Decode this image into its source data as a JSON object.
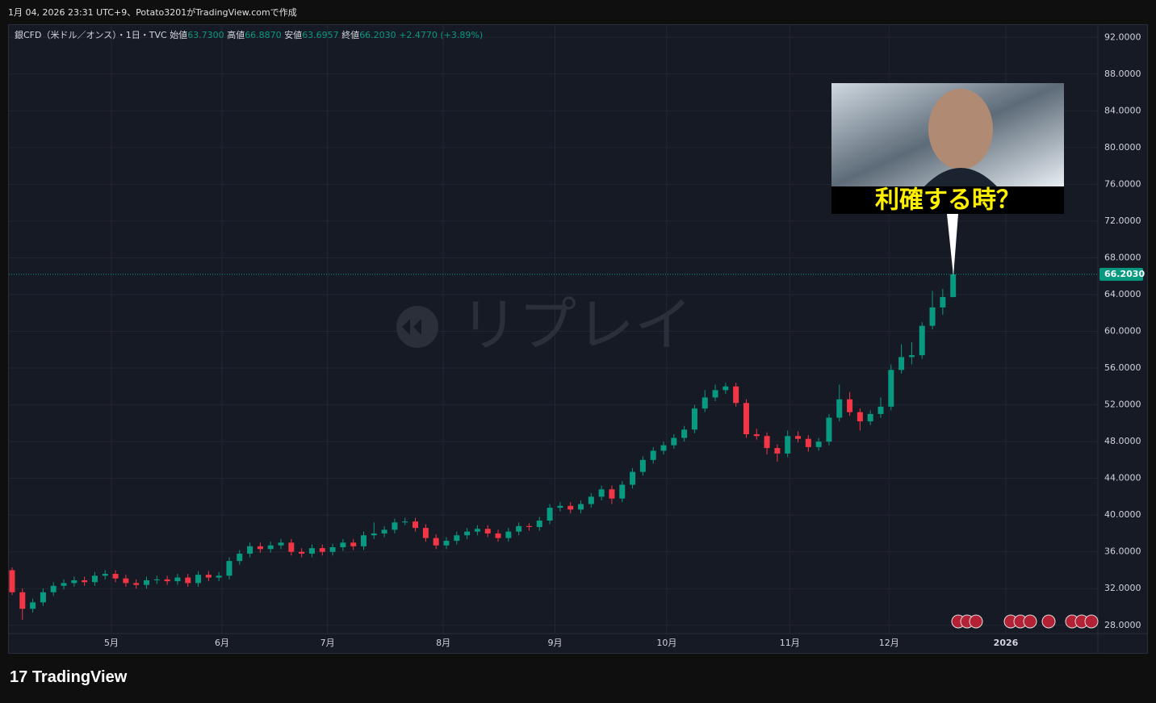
{
  "header": {
    "created": "1月 04, 2026 23:31 UTC+9、Potato3201がTradingView.comで作成",
    "symbol": "銀CFD（米ドル／オンス）・1日・TVC",
    "open_label": "始値",
    "open": "63.7300",
    "high_label": "高値",
    "high": "66.8870",
    "low_label": "安値",
    "low": "63.6957",
    "close_label": "終値",
    "close": "66.2030",
    "change": "+2.4770 (+3.89%)"
  },
  "overlay": {
    "caption": "利確する時？",
    "watermark": "リプレイ"
  },
  "footer": {
    "logo": "TradingView"
  },
  "chart_data": {
    "type": "candlestick",
    "up_color": "#089981",
    "down_color": "#f23645",
    "grid": true,
    "ylim": [
      27.1,
      93.34
    ],
    "xlim": [
      -0.31,
      105
    ],
    "yticks": [
      {
        "value": 28,
        "label": "28.0000"
      },
      {
        "value": 32,
        "label": "32.0000"
      },
      {
        "value": 36,
        "label": "36.0000"
      },
      {
        "value": 40,
        "label": "40.0000"
      },
      {
        "value": 44,
        "label": "44.0000"
      },
      {
        "value": 48,
        "label": "48.0000"
      },
      {
        "value": 52,
        "label": "52.0000"
      },
      {
        "value": 56,
        "label": "56.0000"
      },
      {
        "value": 60,
        "label": "60.0000"
      },
      {
        "value": 64,
        "label": "64.0000"
      },
      {
        "value": 68,
        "label": "68.0000"
      },
      {
        "value": 72,
        "label": "72.0000"
      },
      {
        "value": 76,
        "label": "76.0000"
      },
      {
        "value": 80,
        "label": "80.0000"
      },
      {
        "value": 84,
        "label": "84.0000"
      },
      {
        "value": 88,
        "label": "88.0000"
      },
      {
        "value": 92,
        "label": "92.0000"
      }
    ],
    "xticks": [
      {
        "value": 9.6,
        "label": "5月"
      },
      {
        "value": 20.3,
        "label": "6月"
      },
      {
        "value": 30.5,
        "label": "7月"
      },
      {
        "value": 41.7,
        "label": "8月"
      },
      {
        "value": 52.5,
        "label": "9月"
      },
      {
        "value": 63.3,
        "label": "10月"
      },
      {
        "value": 75.2,
        "label": "11月"
      },
      {
        "value": 84.8,
        "label": "12月"
      },
      {
        "value": 96.1,
        "label": "2026"
      }
    ],
    "last_price": {
      "value": 66.203,
      "label": "66.2030"
    },
    "ohlc": [
      [
        34.0,
        34.3,
        31.3,
        31.6
      ],
      [
        31.6,
        32.0,
        28.6,
        29.8
      ],
      [
        29.8,
        30.9,
        29.4,
        30.5
      ],
      [
        30.5,
        32.0,
        30.1,
        31.6
      ],
      [
        31.6,
        32.7,
        31.2,
        32.3
      ],
      [
        32.3,
        33.0,
        31.9,
        32.6
      ],
      [
        32.6,
        33.3,
        32.2,
        32.9
      ],
      [
        32.9,
        33.3,
        32.3,
        32.7
      ],
      [
        32.7,
        33.8,
        32.3,
        33.4
      ],
      [
        33.4,
        34.0,
        33.0,
        33.6
      ],
      [
        33.6,
        34.0,
        32.7,
        33.1
      ],
      [
        33.1,
        33.5,
        32.2,
        32.6
      ],
      [
        32.6,
        33.0,
        32.0,
        32.4
      ],
      [
        32.4,
        33.3,
        32.0,
        32.9
      ],
      [
        32.9,
        33.4,
        32.5,
        33.0
      ],
      [
        33.0,
        33.4,
        32.4,
        32.8
      ],
      [
        32.8,
        33.6,
        32.4,
        33.2
      ],
      [
        33.2,
        33.6,
        32.2,
        32.6
      ],
      [
        32.6,
        33.9,
        32.2,
        33.5
      ],
      [
        33.5,
        33.9,
        32.8,
        33.2
      ],
      [
        33.2,
        33.8,
        32.8,
        33.4
      ],
      [
        33.4,
        35.4,
        33.0,
        35.0
      ],
      [
        35.0,
        36.2,
        34.6,
        35.8
      ],
      [
        35.8,
        37.0,
        35.4,
        36.6
      ],
      [
        36.6,
        37.0,
        35.9,
        36.3
      ],
      [
        36.3,
        37.1,
        35.9,
        36.7
      ],
      [
        36.7,
        37.4,
        36.3,
        37.0
      ],
      [
        37.0,
        37.4,
        35.6,
        36.0
      ],
      [
        36.0,
        36.4,
        35.4,
        35.8
      ],
      [
        35.8,
        36.8,
        35.4,
        36.4
      ],
      [
        36.4,
        36.8,
        35.6,
        36.0
      ],
      [
        36.0,
        36.9,
        35.6,
        36.5
      ],
      [
        36.5,
        37.4,
        36.1,
        37.0
      ],
      [
        37.0,
        37.4,
        36.2,
        36.6
      ],
      [
        36.6,
        38.2,
        36.2,
        37.8
      ],
      [
        37.8,
        39.2,
        37.4,
        38.0
      ],
      [
        38.0,
        38.8,
        37.6,
        38.4
      ],
      [
        38.4,
        39.6,
        38.0,
        39.2
      ],
      [
        39.2,
        39.7,
        38.9,
        39.3
      ],
      [
        39.3,
        39.7,
        38.2,
        38.6
      ],
      [
        38.6,
        39.0,
        37.1,
        37.5
      ],
      [
        37.5,
        37.9,
        36.3,
        36.7
      ],
      [
        36.7,
        37.6,
        36.3,
        37.2
      ],
      [
        37.2,
        38.2,
        36.8,
        37.8
      ],
      [
        37.8,
        38.6,
        37.4,
        38.2
      ],
      [
        38.2,
        38.9,
        37.8,
        38.5
      ],
      [
        38.5,
        38.9,
        37.6,
        38.0
      ],
      [
        38.0,
        38.4,
        37.1,
        37.5
      ],
      [
        37.5,
        38.6,
        37.1,
        38.2
      ],
      [
        38.2,
        39.2,
        37.8,
        38.8
      ],
      [
        38.8,
        39.1,
        38.3,
        38.7
      ],
      [
        38.7,
        39.8,
        38.3,
        39.4
      ],
      [
        39.4,
        41.2,
        39.0,
        40.8
      ],
      [
        40.8,
        41.4,
        40.4,
        41.0
      ],
      [
        41.0,
        41.4,
        40.2,
        40.6
      ],
      [
        40.6,
        41.6,
        40.2,
        41.2
      ],
      [
        41.2,
        42.4,
        40.8,
        42.0
      ],
      [
        42.0,
        43.2,
        41.6,
        42.8
      ],
      [
        42.8,
        43.2,
        41.2,
        41.8
      ],
      [
        41.8,
        43.7,
        41.4,
        43.3
      ],
      [
        43.3,
        45.1,
        42.9,
        44.7
      ],
      [
        44.7,
        46.4,
        44.3,
        46.0
      ],
      [
        46.0,
        47.4,
        45.6,
        47.0
      ],
      [
        47.0,
        48.0,
        46.6,
        47.6
      ],
      [
        47.6,
        48.8,
        47.2,
        48.4
      ],
      [
        48.4,
        49.7,
        48.0,
        49.3
      ],
      [
        49.3,
        52.0,
        48.9,
        51.6
      ],
      [
        51.6,
        53.6,
        51.2,
        52.8
      ],
      [
        52.8,
        54.2,
        52.4,
        53.6
      ],
      [
        53.6,
        54.4,
        53.2,
        54.0
      ],
      [
        54.0,
        54.4,
        51.8,
        52.2
      ],
      [
        52.2,
        52.6,
        48.4,
        48.8
      ],
      [
        48.8,
        49.4,
        48.2,
        48.6
      ],
      [
        48.6,
        49.0,
        46.6,
        47.3
      ],
      [
        47.3,
        47.7,
        45.8,
        46.7
      ],
      [
        46.7,
        49.2,
        46.3,
        48.6
      ],
      [
        48.6,
        49.1,
        47.9,
        48.3
      ],
      [
        48.3,
        48.7,
        46.9,
        47.4
      ],
      [
        47.4,
        48.4,
        47.0,
        48.0
      ],
      [
        48.0,
        51.0,
        47.6,
        50.6
      ],
      [
        50.6,
        54.2,
        50.2,
        52.6
      ],
      [
        52.6,
        53.4,
        50.8,
        51.2
      ],
      [
        51.2,
        51.6,
        49.2,
        50.2
      ],
      [
        50.2,
        51.4,
        49.8,
        51.0
      ],
      [
        51.0,
        52.8,
        50.6,
        51.8
      ],
      [
        51.8,
        56.4,
        51.4,
        55.8
      ],
      [
        55.8,
        58.6,
        55.4,
        57.2
      ],
      [
        57.2,
        58.8,
        56.4,
        57.4
      ],
      [
        57.4,
        61.0,
        57.0,
        60.6
      ],
      [
        60.6,
        64.4,
        60.2,
        62.6
      ],
      [
        62.6,
        64.6,
        61.8,
        63.73
      ],
      [
        63.73,
        66.887,
        63.6957,
        66.203
      ]
    ]
  }
}
